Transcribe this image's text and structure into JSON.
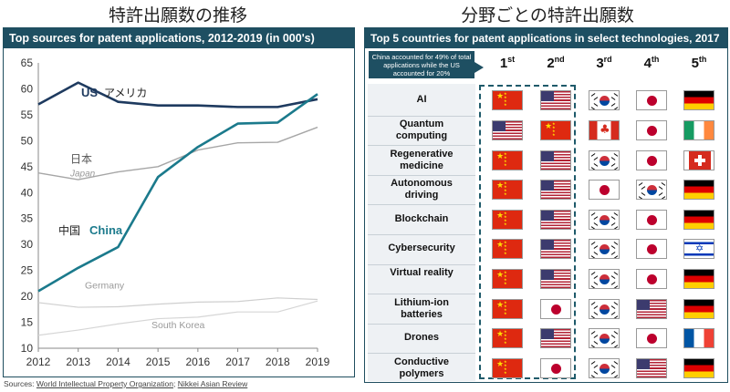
{
  "left": {
    "heading_jp": "特許出願数の推移",
    "bar_title": "Top sources for patent applications, 2012-2019 (in 000's)"
  },
  "right": {
    "heading_jp": "分野ごとの特許出願数",
    "bar_title": "Top 5 countries for patent applications in select technologies, 2017",
    "callout": "China accounted for 49% of total applications while the US accounted for 20%",
    "rank_headers": [
      {
        "num": "1",
        "sup": "st"
      },
      {
        "num": "2",
        "sup": "nd"
      },
      {
        "num": "3",
        "sup": "rd"
      },
      {
        "num": "4",
        "sup": "th"
      },
      {
        "num": "5",
        "sup": "th"
      }
    ],
    "rows": [
      {
        "tech": "AI",
        "flags": [
          "cn",
          "us",
          "kr",
          "jp",
          "de"
        ]
      },
      {
        "tech": "Quantum computing",
        "flags": [
          "us",
          "cn",
          "ca",
          "jp",
          "ie"
        ]
      },
      {
        "tech": "Regenerative medicine",
        "flags": [
          "cn",
          "us",
          "kr",
          "jp",
          "ch"
        ]
      },
      {
        "tech": "Autonomous driving",
        "flags": [
          "cn",
          "us",
          "jp",
          "kr",
          "de"
        ]
      },
      {
        "tech": "Blockchain",
        "flags": [
          "cn",
          "us",
          "kr",
          "jp",
          "de"
        ]
      },
      {
        "tech": "Cybersecurity",
        "flags": [
          "cn",
          "us",
          "kr",
          "jp",
          "il"
        ]
      },
      {
        "tech": "Virtual reality",
        "flags": [
          "cn",
          "us",
          "kr",
          "jp",
          "de"
        ]
      },
      {
        "tech": "Lithium-ion batteries",
        "flags": [
          "cn",
          "jp",
          "kr",
          "us",
          "de"
        ]
      },
      {
        "tech": "Drones",
        "flags": [
          "cn",
          "us",
          "kr",
          "jp",
          "fr"
        ]
      },
      {
        "tech": "Conductive polymers",
        "flags": [
          "cn",
          "jp",
          "kr",
          "us",
          "de"
        ]
      }
    ]
  },
  "sources": {
    "prefix": "Sources: ",
    "s1": "World Intellectual Property Organization",
    "sep": "; ",
    "s2": "Nikkei Asian Review"
  },
  "chart_data": {
    "type": "line",
    "title": "Top sources for patent applications, 2012-2019 (in 000's)",
    "x": [
      2012,
      2013,
      2014,
      2015,
      2016,
      2017,
      2018,
      2019
    ],
    "xlim": [
      2012,
      2019
    ],
    "ylim": [
      10,
      65
    ],
    "yticks": [
      10,
      15,
      20,
      25,
      30,
      35,
      40,
      45,
      50,
      55,
      60,
      65
    ],
    "grid": false,
    "series": [
      {
        "name": "US",
        "label_jp": "アメリカ",
        "color": "#1e3a5f",
        "values": [
          57.0,
          61.2,
          57.5,
          56.8,
          56.8,
          56.5,
          56.5,
          58.0
        ]
      },
      {
        "name": "China",
        "label_jp": "中国",
        "color": "#1b7a8c",
        "values": [
          21.0,
          25.5,
          29.5,
          43.0,
          48.8,
          53.3,
          53.5,
          59.0
        ]
      },
      {
        "name": "Japan",
        "label_jp": "日本",
        "color": "#a6a6a6",
        "values": [
          43.8,
          42.5,
          44.0,
          45.0,
          48.2,
          49.6,
          49.7,
          52.6
        ]
      },
      {
        "name": "Germany",
        "color": "#cfcfcf",
        "values": [
          18.8,
          17.9,
          18.0,
          18.5,
          18.9,
          19.0,
          19.7,
          19.4
        ]
      },
      {
        "name": "South Korea",
        "color": "#d6d6d6",
        "values": [
          12.5,
          13.5,
          14.7,
          15.7,
          16.0,
          17.0,
          17.0,
          19.1
        ]
      }
    ]
  }
}
